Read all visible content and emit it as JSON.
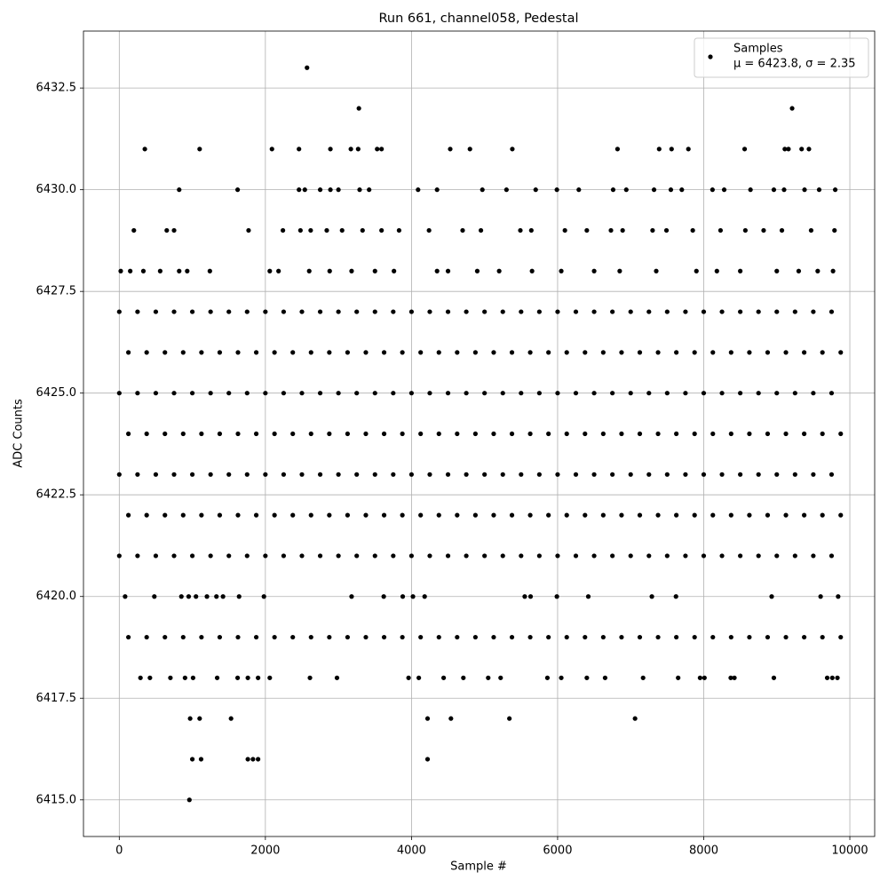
{
  "chart_data": {
    "type": "scatter",
    "title": "Run 661, channel058, Pedestal",
    "x_label": "Sample #",
    "y_label": "ADC Counts",
    "legend_note": "μ = 6423.8, σ = 2.35",
    "legend_position": "upper right",
    "grid": true,
    "xlim": [
      -490,
      10340
    ],
    "ylim": [
      6414.1,
      6433.9
    ],
    "xticks": [
      0,
      2000,
      4000,
      6000,
      8000,
      10000
    ],
    "yticks": [
      {
        "value": 6415,
        "label": "6415.0"
      },
      {
        "value": 6417.5,
        "label": "6417.5"
      },
      {
        "value": 6420,
        "label": "6420.0"
      },
      {
        "value": 6422.5,
        "label": "6422.5"
      },
      {
        "value": 6425,
        "label": "6425.0"
      },
      {
        "value": 6427.5,
        "label": "6427.5"
      },
      {
        "value": 6430,
        "label": "6430.0"
      },
      {
        "value": 6432.5,
        "label": "6432.5"
      }
    ],
    "series": [
      {
        "name": "Samples",
        "color": "#000000",
        "x": [
          0,
          250,
          500,
          750,
          1000,
          1250,
          1500,
          1750,
          2000,
          2250,
          2500,
          2750,
          3000,
          3250,
          3500,
          3750,
          4000,
          4250,
          4500,
          4750,
          5000,
          5250,
          5500,
          5750,
          6000,
          6250,
          6500,
          6750,
          7000,
          7250,
          7500,
          7750,
          8000,
          8250,
          8500,
          8750,
          9000,
          9250,
          9500,
          9750,
          125,
          375,
          625,
          875,
          1125,
          1375,
          1625,
          1875,
          2125,
          2375,
          2625,
          2875,
          3125,
          3375,
          3625,
          3875,
          4125,
          4375,
          4625,
          4875,
          5125,
          5375,
          5625,
          5875,
          6125,
          6375,
          6625,
          6875,
          7125,
          7375,
          7625,
          7875,
          8125,
          8375,
          8625,
          8875,
          9125,
          9375,
          9625,
          9875,
          0,
          250,
          500,
          750,
          1000,
          1250,
          1500,
          1750,
          2000,
          2250,
          2500,
          2750,
          3000,
          3250,
          3500,
          3750,
          4000,
          4250,
          4500,
          4750,
          5000,
          5250,
          5500,
          5750,
          6000,
          6250,
          6500,
          6750,
          7000,
          7250,
          7500,
          7750,
          8000,
          8250,
          8500,
          8750,
          9000,
          9250,
          9500,
          9750,
          125,
          375,
          625,
          875,
          1125,
          1375,
          1625,
          1875,
          2125,
          2375,
          2625,
          2875,
          3125,
          3375,
          3625,
          3875,
          4125,
          4375,
          4625,
          4875,
          5125,
          5375,
          5625,
          5875,
          6125,
          6375,
          6625,
          6875,
          7125,
          7375,
          7625,
          7875,
          8125,
          8375,
          8625,
          8875,
          9125,
          9375,
          9625,
          9875,
          0,
          250,
          500,
          750,
          1000,
          1250,
          1500,
          1750,
          2000,
          2250,
          2500,
          2750,
          3000,
          3250,
          3500,
          3750,
          4000,
          4250,
          4500,
          4750,
          5000,
          5250,
          5500,
          5750,
          6000,
          6250,
          6500,
          6750,
          7000,
          7250,
          7500,
          7750,
          8000,
          8250,
          8500,
          8750,
          9000,
          9250,
          9500,
          9750,
          125,
          375,
          625,
          875,
          1125,
          1375,
          1625,
          1875,
          2125,
          2375,
          2625,
          2875,
          3125,
          3375,
          3625,
          3875,
          4125,
          4375,
          4625,
          4875,
          5125,
          5375,
          5625,
          5875,
          6125,
          6375,
          6625,
          6875,
          7125,
          7375,
          7625,
          7875,
          8125,
          8375,
          8625,
          8875,
          9125,
          9375,
          9625,
          9875,
          0,
          250,
          500,
          750,
          1000,
          1250,
          1500,
          1750,
          2000,
          2250,
          2500,
          2750,
          3000,
          3250,
          3500,
          3750,
          4000,
          4250,
          4500,
          4750,
          5000,
          5250,
          5500,
          5750,
          6000,
          6250,
          6500,
          6750,
          7000,
          7250,
          7500,
          7750,
          8000,
          8250,
          8500,
          8750,
          9000,
          9250,
          9500,
          9750,
          125,
          375,
          625,
          875,
          1125,
          1375,
          1625,
          1875,
          2125,
          2375,
          2625,
          2875,
          3125,
          3375,
          3625,
          3875,
          4125,
          4375,
          4625,
          4875,
          5125,
          5375,
          5625,
          5875,
          6125,
          6375,
          6625,
          6875,
          7125,
          7375,
          7625,
          7875,
          8125,
          8375,
          8625,
          8875,
          9125,
          9375,
          9625,
          9875,
          960,
          1000,
          1120,
          1760,
          1830,
          1900,
          4220,
          970,
          1100,
          1530,
          4220,
          4540,
          5340,
          7060,
          290,
          420,
          700,
          900,
          1010,
          1340,
          1620,
          1760,
          1900,
          2060,
          2610,
          2980,
          3960,
          4100,
          4440,
          4710,
          5050,
          5220,
          5860,
          6050,
          6400,
          6650,
          7170,
          7650,
          7950,
          8010,
          8370,
          8420,
          8960,
          9690,
          9760,
          9830,
          80,
          480,
          850,
          950,
          1050,
          1200,
          1330,
          1420,
          1640,
          1980,
          3180,
          3620,
          3880,
          4020,
          4180,
          5550,
          5630,
          5990,
          6420,
          7290,
          7620,
          8930,
          9600,
          9840,
          20,
          150,
          330,
          560,
          820,
          930,
          1240,
          2060,
          2180,
          2600,
          2880,
          3180,
          3500,
          3760,
          4350,
          4500,
          4900,
          5200,
          5650,
          6050,
          6500,
          6850,
          7350,
          7900,
          8180,
          8500,
          9000,
          9300,
          9560,
          9770,
          200,
          650,
          750,
          1770,
          2240,
          2480,
          2620,
          2840,
          3050,
          3330,
          3590,
          3830,
          4240,
          4700,
          4950,
          5490,
          5640,
          6100,
          6400,
          6730,
          6890,
          7300,
          7490,
          7850,
          8230,
          8570,
          8820,
          9070,
          9470,
          9790,
          820,
          1620,
          2460,
          2540,
          2750,
          2890,
          3000,
          3290,
          3420,
          4090,
          4350,
          4970,
          5300,
          5700,
          5990,
          6290,
          6760,
          6940,
          7320,
          7550,
          7700,
          8120,
          8280,
          8640,
          8960,
          9100,
          9380,
          9580,
          9800,
          350,
          1100,
          2090,
          2460,
          2890,
          3170,
          3270,
          3530,
          3590,
          4530,
          4800,
          5380,
          6820,
          7390,
          7560,
          7790,
          8560,
          9110,
          9160,
          9340,
          9440,
          3280,
          9210,
          2570
        ],
        "values": [
          6427,
          6427,
          6427,
          6427,
          6427,
          6427,
          6427,
          6427,
          6427,
          6427,
          6427,
          6427,
          6427,
          6427,
          6427,
          6427,
          6427,
          6427,
          6427,
          6427,
          6427,
          6427,
          6427,
          6427,
          6427,
          6427,
          6427,
          6427,
          6427,
          6427,
          6427,
          6427,
          6427,
          6427,
          6427,
          6427,
          6427,
          6427,
          6427,
          6427,
          6426,
          6426,
          6426,
          6426,
          6426,
          6426,
          6426,
          6426,
          6426,
          6426,
          6426,
          6426,
          6426,
          6426,
          6426,
          6426,
          6426,
          6426,
          6426,
          6426,
          6426,
          6426,
          6426,
          6426,
          6426,
          6426,
          6426,
          6426,
          6426,
          6426,
          6426,
          6426,
          6426,
          6426,
          6426,
          6426,
          6426,
          6426,
          6426,
          6426,
          6425,
          6425,
          6425,
          6425,
          6425,
          6425,
          6425,
          6425,
          6425,
          6425,
          6425,
          6425,
          6425,
          6425,
          6425,
          6425,
          6425,
          6425,
          6425,
          6425,
          6425,
          6425,
          6425,
          6425,
          6425,
          6425,
          6425,
          6425,
          6425,
          6425,
          6425,
          6425,
          6425,
          6425,
          6425,
          6425,
          6425,
          6425,
          6425,
          6425,
          6424,
          6424,
          6424,
          6424,
          6424,
          6424,
          6424,
          6424,
          6424,
          6424,
          6424,
          6424,
          6424,
          6424,
          6424,
          6424,
          6424,
          6424,
          6424,
          6424,
          6424,
          6424,
          6424,
          6424,
          6424,
          6424,
          6424,
          6424,
          6424,
          6424,
          6424,
          6424,
          6424,
          6424,
          6424,
          6424,
          6424,
          6424,
          6424,
          6424,
          6423,
          6423,
          6423,
          6423,
          6423,
          6423,
          6423,
          6423,
          6423,
          6423,
          6423,
          6423,
          6423,
          6423,
          6423,
          6423,
          6423,
          6423,
          6423,
          6423,
          6423,
          6423,
          6423,
          6423,
          6423,
          6423,
          6423,
          6423,
          6423,
          6423,
          6423,
          6423,
          6423,
          6423,
          6423,
          6423,
          6423,
          6423,
          6423,
          6423,
          6422,
          6422,
          6422,
          6422,
          6422,
          6422,
          6422,
          6422,
          6422,
          6422,
          6422,
          6422,
          6422,
          6422,
          6422,
          6422,
          6422,
          6422,
          6422,
          6422,
          6422,
          6422,
          6422,
          6422,
          6422,
          6422,
          6422,
          6422,
          6422,
          6422,
          6422,
          6422,
          6422,
          6422,
          6422,
          6422,
          6422,
          6422,
          6422,
          6422,
          6421,
          6421,
          6421,
          6421,
          6421,
          6421,
          6421,
          6421,
          6421,
          6421,
          6421,
          6421,
          6421,
          6421,
          6421,
          6421,
          6421,
          6421,
          6421,
          6421,
          6421,
          6421,
          6421,
          6421,
          6421,
          6421,
          6421,
          6421,
          6421,
          6421,
          6421,
          6421,
          6421,
          6421,
          6421,
          6421,
          6421,
          6421,
          6421,
          6421,
          6419,
          6419,
          6419,
          6419,
          6419,
          6419,
          6419,
          6419,
          6419,
          6419,
          6419,
          6419,
          6419,
          6419,
          6419,
          6419,
          6419,
          6419,
          6419,
          6419,
          6419,
          6419,
          6419,
          6419,
          6419,
          6419,
          6419,
          6419,
          6419,
          6419,
          6419,
          6419,
          6419,
          6419,
          6419,
          6419,
          6419,
          6419,
          6419,
          6419,
          6415,
          6416,
          6416,
          6416,
          6416,
          6416,
          6416,
          6417,
          6417,
          6417,
          6417,
          6417,
          6417,
          6417,
          6418,
          6418,
          6418,
          6418,
          6418,
          6418,
          6418,
          6418,
          6418,
          6418,
          6418,
          6418,
          6418,
          6418,
          6418,
          6418,
          6418,
          6418,
          6418,
          6418,
          6418,
          6418,
          6418,
          6418,
          6418,
          6418,
          6418,
          6418,
          6418,
          6418,
          6418,
          6418,
          6420,
          6420,
          6420,
          6420,
          6420,
          6420,
          6420,
          6420,
          6420,
          6420,
          6420,
          6420,
          6420,
          6420,
          6420,
          6420,
          6420,
          6420,
          6420,
          6420,
          6420,
          6420,
          6420,
          6420,
          6428,
          6428,
          6428,
          6428,
          6428,
          6428,
          6428,
          6428,
          6428,
          6428,
          6428,
          6428,
          6428,
          6428,
          6428,
          6428,
          6428,
          6428,
          6428,
          6428,
          6428,
          6428,
          6428,
          6428,
          6428,
          6428,
          6428,
          6428,
          6428,
          6428,
          6429,
          6429,
          6429,
          6429,
          6429,
          6429,
          6429,
          6429,
          6429,
          6429,
          6429,
          6429,
          6429,
          6429,
          6429,
          6429,
          6429,
          6429,
          6429,
          6429,
          6429,
          6429,
          6429,
          6429,
          6429,
          6429,
          6429,
          6429,
          6429,
          6429,
          6430,
          6430,
          6430,
          6430,
          6430,
          6430,
          6430,
          6430,
          6430,
          6430,
          6430,
          6430,
          6430,
          6430,
          6430,
          6430,
          6430,
          6430,
          6430,
          6430,
          6430,
          6430,
          6430,
          6430,
          6430,
          6430,
          6430,
          6430,
          6430,
          6431,
          6431,
          6431,
          6431,
          6431,
          6431,
          6431,
          6431,
          6431,
          6431,
          6431,
          6431,
          6431,
          6431,
          6431,
          6431,
          6431,
          6431,
          6431,
          6431,
          6431,
          6432,
          6432,
          6433
        ]
      }
    ]
  }
}
